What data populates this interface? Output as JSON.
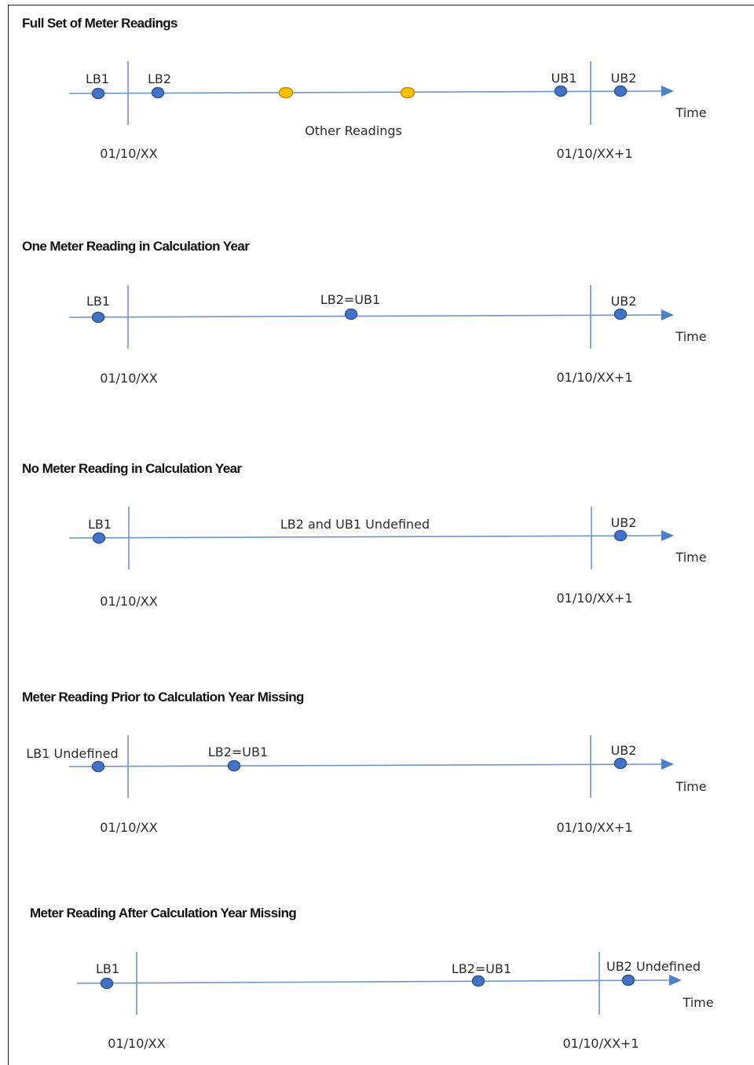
{
  "panels": [
    {
      "title": "Full Set of Meter Readings",
      "time_label": "Time",
      "start_date": "01/10/XX",
      "end_date": "01/10/XX+1",
      "labels": [
        {
          "id": "lb1",
          "text": "LB1"
        },
        {
          "id": "lb2",
          "text": "LB2"
        },
        {
          "id": "ub1",
          "text": "UB1"
        },
        {
          "id": "ub2",
          "text": "UB2"
        },
        {
          "id": "other",
          "text": "Other Readings"
        }
      ],
      "points": [
        {
          "id": "lb1",
          "color": "blue"
        },
        {
          "id": "lb2",
          "color": "blue"
        },
        {
          "id": "other-1",
          "color": "yellow"
        },
        {
          "id": "other-2",
          "color": "yellow"
        },
        {
          "id": "ub1",
          "color": "blue"
        },
        {
          "id": "ub2",
          "color": "blue"
        }
      ]
    },
    {
      "title": "One Meter Reading in Calculation Year",
      "time_label": "Time",
      "start_date": "01/10/XX",
      "end_date": "01/10/XX+1",
      "labels": [
        {
          "id": "lb1",
          "text": "LB1"
        },
        {
          "id": "lb2-ub1",
          "text": "LB2=UB1"
        },
        {
          "id": "ub2",
          "text": "UB2"
        }
      ],
      "points": [
        {
          "id": "lb1",
          "color": "blue"
        },
        {
          "id": "lb2-ub1",
          "color": "blue"
        },
        {
          "id": "ub2",
          "color": "blue"
        }
      ]
    },
    {
      "title": "No Meter Reading in Calculation Year",
      "time_label": "Time",
      "start_date": "01/10/XX",
      "end_date": "01/10/XX+1",
      "labels": [
        {
          "id": "lb1",
          "text": "LB1"
        },
        {
          "id": "undefined",
          "text": "LB2 and UB1 Undefined"
        },
        {
          "id": "ub2",
          "text": "UB2"
        }
      ],
      "points": [
        {
          "id": "lb1",
          "color": "blue"
        },
        {
          "id": "ub2",
          "color": "blue"
        }
      ]
    },
    {
      "title": "Meter Reading Prior to Calculation Year Missing",
      "time_label": "Time",
      "start_date": "01/10/XX",
      "end_date": "01/10/XX+1",
      "labels": [
        {
          "id": "lb1",
          "text": "LB1 Undefined"
        },
        {
          "id": "lb2-ub1",
          "text": "LB2=UB1"
        },
        {
          "id": "ub2",
          "text": "UB2"
        }
      ],
      "points": [
        {
          "id": "lb1",
          "color": "blue"
        },
        {
          "id": "lb2-ub1",
          "color": "blue"
        },
        {
          "id": "ub2",
          "color": "blue"
        }
      ]
    },
    {
      "title": "Meter Reading After Calculation Year Missing",
      "time_label": "Time",
      "start_date": "01/10/XX",
      "end_date": "01/10/XX+1",
      "labels": [
        {
          "id": "lb1",
          "text": "LB1"
        },
        {
          "id": "lb2-ub1",
          "text": "LB2=UB1"
        },
        {
          "id": "ub2",
          "text": "UB2 Undefined"
        }
      ],
      "points": [
        {
          "id": "lb1",
          "color": "blue"
        },
        {
          "id": "lb2-ub1",
          "color": "blue"
        },
        {
          "id": "ub2",
          "color": "blue"
        }
      ]
    }
  ]
}
